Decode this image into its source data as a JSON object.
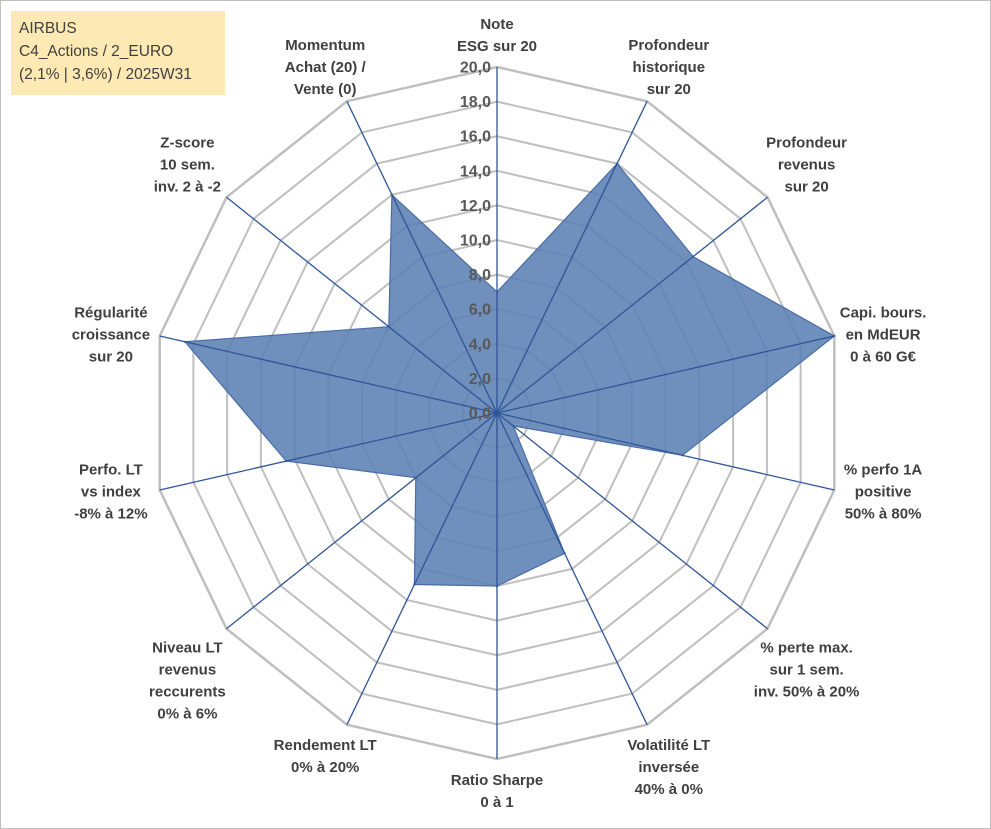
{
  "info": {
    "line1": "AIRBUS",
    "line2": "C4_Actions / 2_EURO",
    "line3": "(2,1% | 3,6%) / 2025W31"
  },
  "colors": {
    "fill": "#5b7fb4",
    "edge": "#4a6da5",
    "axis": "#2f5597",
    "grid": "#bfbfbf",
    "info_bg": "#fde9b4"
  },
  "chart_data": {
    "type": "radar",
    "rlim": [
      0,
      20
    ],
    "rticks": [
      "0,0",
      "2,0",
      "4,0",
      "6,0",
      "8,0",
      "10,0",
      "12,0",
      "14,0",
      "16,0",
      "18,0",
      "20,0"
    ],
    "grid": true,
    "axes": [
      {
        "lines": [
          "Note",
          "ESG sur 20"
        ],
        "value": 7.0
      },
      {
        "lines": [
          "Profondeur",
          "historique",
          "sur 20"
        ],
        "value": 16.0
      },
      {
        "lines": [
          "Profondeur",
          "revenus",
          "sur 20"
        ],
        "value": 14.5
      },
      {
        "lines": [
          "Capi. bours.",
          "en MdEUR",
          "0 à 60 G€"
        ],
        "value": 20.0
      },
      {
        "lines": [
          "% perfo 1A",
          "positive",
          "50% à 80%"
        ],
        "value": 11.0
      },
      {
        "lines": [
          "% perte max.",
          "sur 1 sem.",
          "inv. 50% à 20%"
        ],
        "value": 1.2
      },
      {
        "lines": [
          "Volatilité LT",
          "inversée",
          "40% à 0%"
        ],
        "value": 9.0
      },
      {
        "lines": [
          "Ratio Sharpe",
          "0 à 1"
        ],
        "value": 10.0
      },
      {
        "lines": [
          "Rendement LT",
          "0% à 20%"
        ],
        "value": 11.0
      },
      {
        "lines": [
          "Niveau LT",
          "revenus",
          "reccurents",
          "0% à 6%"
        ],
        "value": 6.0
      },
      {
        "lines": [
          "Perfo. LT",
          "vs index",
          "-8% à 12%"
        ],
        "value": 12.5
      },
      {
        "lines": [
          "Régularité",
          "croissance",
          "sur 20"
        ],
        "value": 18.5
      },
      {
        "lines": [
          "Z-score",
          "10 sem.",
          "inv. 2 à -2"
        ],
        "value": 8.0
      },
      {
        "lines": [
          "Momentum",
          "Achat (20) /",
          "Vente (0)"
        ],
        "value": 14.0
      }
    ]
  }
}
